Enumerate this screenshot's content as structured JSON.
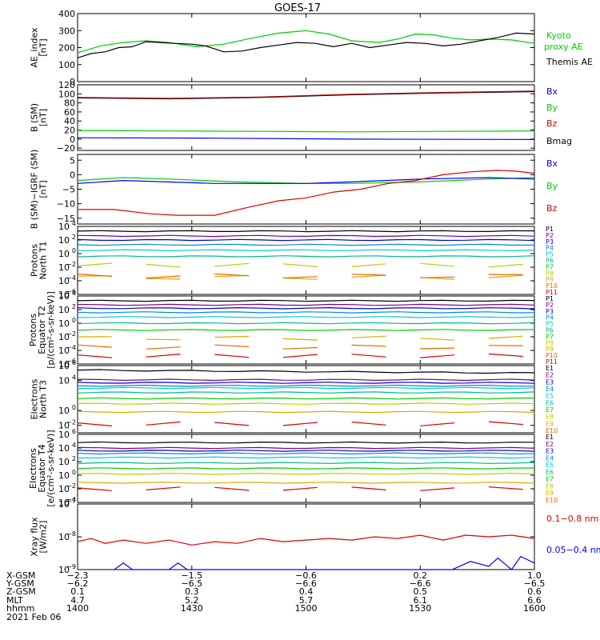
{
  "title": "GOES-17",
  "colors": {
    "black": "#000000",
    "green": "#00cc00",
    "blue": "#0000ff",
    "red": "#dd0000",
    "p_colors": [
      "#000000",
      "#800080",
      "#0000cc",
      "#0088dd",
      "#00cccc",
      "#00bb88",
      "#00cc00",
      "#bbcc00",
      "#ddaa00",
      "#ee6600",
      "#dd0000",
      "#aa0000"
    ],
    "e_colors": [
      "#000000",
      "#800080",
      "#0000cc",
      "#0088dd",
      "#00cccc",
      "#00bb88",
      "#00cc00",
      "#bbcc00",
      "#ddaa00",
      "#ee6600",
      "#dd0000"
    ]
  },
  "panels": [
    {
      "id": "ae",
      "ylabel": [
        "AE_index",
        "[nT]"
      ],
      "scale": "linear",
      "ylim": [
        0,
        400
      ],
      "ticks": [
        "0",
        "100",
        "200",
        "300",
        "400"
      ],
      "legend": [
        {
          "text": "Kyoto",
          "color": "green"
        },
        {
          "text": "proxy AE",
          "color": "green"
        },
        {
          "text": "Themis AE",
          "color": "black"
        }
      ]
    },
    {
      "id": "b",
      "ylabel": [
        "B (SM)",
        "[nT]"
      ],
      "scale": "linear",
      "ylim": [
        -25,
        120
      ],
      "ticks": [
        "−20",
        "0",
        "20",
        "40",
        "60",
        "80",
        "100",
        "120"
      ],
      "legend": [
        {
          "text": "Bx",
          "color": "blue"
        },
        {
          "text": "By",
          "color": "green"
        },
        {
          "text": "Bz",
          "color": "red"
        },
        {
          "text": "Bmag",
          "color": "black"
        }
      ]
    },
    {
      "id": "bi",
      "ylabel": [
        "B (SM)−IGRF (SM)",
        "[nT]"
      ],
      "scale": "linear",
      "ylim": [
        -17,
        7
      ],
      "ticks": [
        "−15",
        "−10",
        "−5",
        "0",
        "5"
      ],
      "legend": [
        {
          "text": "Bx",
          "color": "blue"
        },
        {
          "text": "By",
          "color": "green"
        },
        {
          "text": "Bz",
          "color": "red"
        }
      ]
    },
    {
      "id": "pn",
      "ylabel": [
        "Protons",
        "North T1"
      ],
      "scale": "log",
      "ylim": [
        -6,
        4
      ],
      "ticks": [
        "10",
        "10",
        "10",
        "10",
        "10",
        "10"
      ],
      "tick_exps": [
        "−6",
        "−4",
        "−2",
        "0",
        "2",
        "4"
      ],
      "legend": [
        "P1",
        "P2",
        "P3",
        "P4",
        "P5",
        "P6",
        "P7",
        "P8",
        "P9",
        "P10",
        "P11"
      ]
    },
    {
      "id": "pe",
      "ylabel": [
        "Protons",
        "Equator T2",
        "[p/(cm²-s-sr-keV)]"
      ],
      "scale": "log",
      "ylim": [
        -6,
        4
      ],
      "ticks": [
        "10",
        "10",
        "10",
        "10",
        "10",
        "10"
      ],
      "tick_exps": [
        "−6",
        "−4",
        "−2",
        "0",
        "2",
        "4"
      ],
      "legend": [
        "P1",
        "P2",
        "P3",
        "P4",
        "P5",
        "P6",
        "P7",
        "P8",
        "P9",
        "P10",
        "P11"
      ]
    },
    {
      "id": "en",
      "ylabel": [
        "Electrons",
        "North T3"
      ],
      "scale": "log",
      "ylim": [
        -3,
        6
      ],
      "ticks": [
        "10",
        "10",
        "10",
        "10"
      ],
      "tick_exps": [
        "−2",
        "0",
        "4",
        "6"
      ],
      "legend": [
        "E1",
        "E2",
        "E3",
        "E4",
        "E5",
        "E6",
        "E7",
        "E8",
        "E9",
        "E10"
      ]
    },
    {
      "id": "ee",
      "ylabel": [
        "Electrons",
        "Equator T4",
        "[e/(cm²-s-sr-keV)]"
      ],
      "scale": "log",
      "ylim": [
        -4,
        6
      ],
      "ticks": [
        "10",
        "10",
        "10",
        "10",
        "10",
        "10"
      ],
      "tick_exps": [
        "−4",
        "−2",
        "0",
        "2",
        "4",
        "6"
      ],
      "legend": [
        "E1",
        "E2",
        "E3",
        "E4",
        "E5",
        "E6",
        "E7",
        "E8",
        "E9",
        "E10"
      ]
    },
    {
      "id": "xr",
      "ylabel": [
        "Xray flux",
        "[W/m2]"
      ],
      "scale": "log",
      "ylim": [
        -9,
        -7
      ],
      "ticks": [
        "10",
        "10",
        "10"
      ],
      "tick_exps": [
        "−9",
        "−8",
        "−7"
      ],
      "legend": [
        {
          "text": "0.1−0.8 nm",
          "color": "red"
        },
        {
          "text": "0.05−0.4 nm",
          "color": "blue"
        }
      ]
    }
  ],
  "footer": {
    "rows": [
      {
        "label": "X-GSM",
        "values": [
          "−2.3",
          "−1.5",
          "−0.6",
          "0.2",
          "1.0"
        ]
      },
      {
        "label": "Y-GSM",
        "values": [
          "−6.2",
          "−6.5",
          "−6.6",
          "−6.6",
          "−6.5"
        ]
      },
      {
        "label": "Z-GSM",
        "values": [
          "0.1",
          "0.3",
          "0.4",
          "0.5",
          "0.6"
        ]
      },
      {
        "label": "MLT",
        "values": [
          "4.7",
          "5.2",
          "5.7",
          "6.1",
          "6.6"
        ]
      },
      {
        "label": "hhmm",
        "values": [
          "1400",
          "1430",
          "1500",
          "1530",
          "1600"
        ]
      }
    ],
    "date": "2021 Feb 06"
  },
  "chart_data": {
    "type": "line",
    "title": "GOES-17",
    "x_ticks": [
      "1400",
      "1430",
      "1500",
      "1530",
      "1600"
    ],
    "series": {
      "ae_themis": [
        [
          0,
          140
        ],
        [
          0.03,
          165
        ],
        [
          0.06,
          175
        ],
        [
          0.09,
          200
        ],
        [
          0.12,
          205
        ],
        [
          0.15,
          235
        ],
        [
          0.18,
          230
        ],
        [
          0.21,
          225
        ],
        [
          0.25,
          220
        ],
        [
          0.28,
          210
        ],
        [
          0.32,
          175
        ],
        [
          0.36,
          180
        ],
        [
          0.4,
          200
        ],
        [
          0.44,
          215
        ],
        [
          0.48,
          230
        ],
        [
          0.52,
          225
        ],
        [
          0.56,
          205
        ],
        [
          0.6,
          225
        ],
        [
          0.64,
          200
        ],
        [
          0.68,
          215
        ],
        [
          0.72,
          230
        ],
        [
          0.76,
          225
        ],
        [
          0.8,
          210
        ],
        [
          0.84,
          220
        ],
        [
          0.88,
          240
        ],
        [
          0.92,
          260
        ],
        [
          0.96,
          285
        ],
        [
          1.0,
          280
        ]
      ],
      "ae_kyoto": [
        [
          0,
          170
        ],
        [
          0.05,
          210
        ],
        [
          0.1,
          230
        ],
        [
          0.15,
          240
        ],
        [
          0.2,
          230
        ],
        [
          0.26,
          205
        ],
        [
          0.32,
          220
        ],
        [
          0.38,
          255
        ],
        [
          0.44,
          285
        ],
        [
          0.5,
          300
        ],
        [
          0.55,
          280
        ],
        [
          0.6,
          240
        ],
        [
          0.66,
          230
        ],
        [
          0.7,
          250
        ],
        [
          0.74,
          280
        ],
        [
          0.78,
          275
        ],
        [
          0.82,
          255
        ],
        [
          0.86,
          245
        ],
        [
          0.9,
          250
        ],
        [
          0.95,
          245
        ],
        [
          1.0,
          225
        ]
      ],
      "b_bmag": [
        [
          0,
          91
        ],
        [
          0.2,
          89
        ],
        [
          0.4,
          92
        ],
        [
          0.6,
          98
        ],
        [
          0.8,
          102
        ],
        [
          1.0,
          105
        ]
      ],
      "b_bz": [
        [
          0,
          92
        ],
        [
          0.2,
          90
        ],
        [
          0.4,
          93
        ],
        [
          0.6,
          99
        ],
        [
          0.8,
          103
        ],
        [
          1.0,
          106
        ]
      ],
      "b_by": [
        [
          0,
          19
        ],
        [
          0.2,
          18
        ],
        [
          0.4,
          17
        ],
        [
          0.6,
          16
        ],
        [
          0.8,
          17
        ],
        [
          1.0,
          18
        ]
      ],
      "b_bx": [
        [
          0,
          3
        ],
        [
          0.3,
          2
        ],
        [
          0.6,
          0
        ],
        [
          1.0,
          -1
        ]
      ],
      "bi_bx": [
        [
          0,
          -3
        ],
        [
          0.1,
          -2
        ],
        [
          0.3,
          -3
        ],
        [
          0.5,
          -3
        ],
        [
          0.6,
          -2.5
        ],
        [
          0.75,
          -1.5
        ],
        [
          0.9,
          -1
        ],
        [
          1.0,
          -1.5
        ]
      ],
      "bi_by": [
        [
          0,
          -2
        ],
        [
          0.1,
          -1
        ],
        [
          0.2,
          -1.5
        ],
        [
          0.35,
          -2.5
        ],
        [
          0.5,
          -3
        ],
        [
          0.6,
          -3
        ],
        [
          0.75,
          -2.5
        ],
        [
          0.9,
          -1.5
        ],
        [
          1.0,
          -1
        ]
      ],
      "bi_bz": [
        [
          0,
          -12
        ],
        [
          0.08,
          -12
        ],
        [
          0.16,
          -13.5
        ],
        [
          0.22,
          -14
        ],
        [
          0.3,
          -14
        ],
        [
          0.38,
          -11
        ],
        [
          0.44,
          -9
        ],
        [
          0.5,
          -8
        ],
        [
          0.56,
          -6
        ],
        [
          0.62,
          -5
        ],
        [
          0.68,
          -3
        ],
        [
          0.74,
          -2
        ],
        [
          0.8,
          0
        ],
        [
          0.86,
          1
        ],
        [
          0.92,
          1.5
        ],
        [
          0.96,
          1.2
        ],
        [
          1.0,
          0.5
        ]
      ],
      "pn_levels": [
        3.3,
        2.6,
        2.0,
        1.3,
        0.5,
        -0.4,
        -1.7,
        -3.5,
        -3.3
      ],
      "pe_levels": [
        3.3,
        2.7,
        2.2,
        1.6,
        0.9,
        0.0,
        -1.0,
        -2.2,
        -3.5,
        -4.8
      ],
      "en_levels": [
        5.4,
        4.1,
        3.7,
        3.3,
        3.0,
        2.4,
        1.6,
        0.9,
        -0.2,
        -1.8
      ],
      "ee_levels": [
        4.8,
        4.0,
        3.6,
        3.2,
        2.6,
        1.8,
        1.0,
        0.2,
        -1.1,
        -2.0
      ],
      "xr_long": [
        [
          0,
          -8.15
        ],
        [
          0.03,
          -8.05
        ],
        [
          0.06,
          -8.2
        ],
        [
          0.1,
          -8.1
        ],
        [
          0.15,
          -8.2
        ],
        [
          0.2,
          -8.1
        ],
        [
          0.25,
          -8.25
        ],
        [
          0.3,
          -8.15
        ],
        [
          0.35,
          -8.2
        ],
        [
          0.4,
          -8.05
        ],
        [
          0.45,
          -8.15
        ],
        [
          0.5,
          -8.1
        ],
        [
          0.55,
          -8.05
        ],
        [
          0.6,
          -8.1
        ],
        [
          0.65,
          -8.0
        ],
        [
          0.7,
          -8.05
        ],
        [
          0.75,
          -7.95
        ],
        [
          0.8,
          -8.1
        ],
        [
          0.85,
          -7.95
        ],
        [
          0.9,
          -8.0
        ],
        [
          0.95,
          -7.95
        ],
        [
          1.0,
          -8.05
        ]
      ],
      "xr_short": [
        [
          0.08,
          -9
        ],
        [
          0.1,
          -8.8
        ],
        [
          0.12,
          -9
        ],
        [
          0.2,
          -9
        ],
        [
          0.22,
          -8.8
        ],
        [
          0.24,
          -9
        ],
        [
          0.82,
          -9
        ],
        [
          0.86,
          -8.75
        ],
        [
          0.9,
          -8.9
        ],
        [
          0.92,
          -8.65
        ],
        [
          0.95,
          -9
        ],
        [
          0.97,
          -8.6
        ],
        [
          1.0,
          -8.8
        ]
      ]
    }
  }
}
